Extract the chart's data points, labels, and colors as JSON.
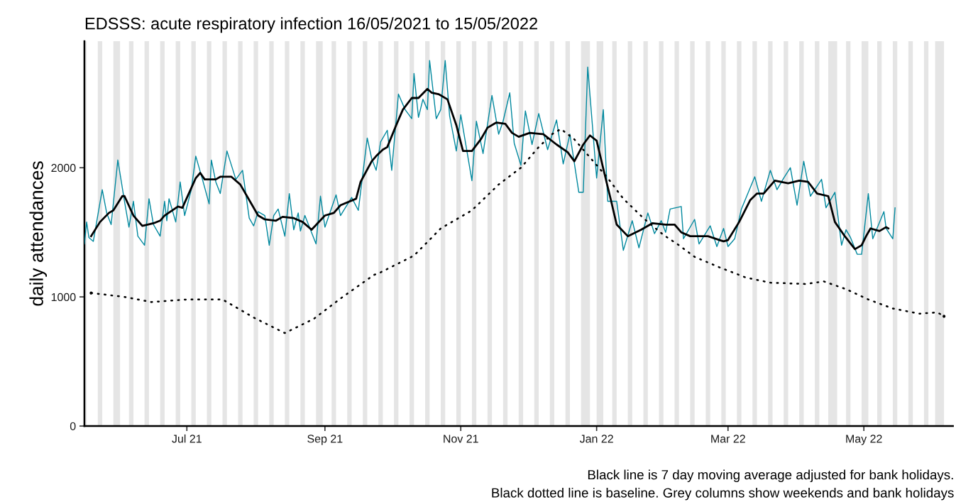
{
  "chart_data": {
    "type": "line",
    "title": "EDSSS: acute respiratory infection 16/05/2021 to 15/05/2022",
    "ylabel": "daily attendances",
    "annotations": [
      "Black line is 7 day moving average adjusted for bank holidays.",
      "Black dotted line is baseline. Grey columns show weekends and bank holidays"
    ],
    "xlim": [
      "2021-05-16",
      "2022-06-10"
    ],
    "xticks": [
      {
        "value": "2021-07-01",
        "label": "Jul 21"
      },
      {
        "value": "2021-09-01",
        "label": "Sep 21"
      },
      {
        "value": "2021-11-01",
        "label": "Nov 21"
      },
      {
        "value": "2022-01-01",
        "label": "Jan 22"
      },
      {
        "value": "2022-03-01",
        "label": "Mar 22"
      },
      {
        "value": "2022-05-01",
        "label": "May 22"
      }
    ],
    "ylim": [
      0,
      2980
    ],
    "yticks": [
      0,
      1000,
      2000
    ],
    "grid": false,
    "series": [
      {
        "color": "#00889e",
        "line_style": "solid",
        "x": [
          "2021-05-16",
          "2021-05-17",
          "2021-05-18",
          "2021-05-20",
          "2021-05-24",
          "2021-05-26",
          "2021-05-28",
          "2021-05-31",
          "2021-06-03",
          "2021-06-05",
          "2021-06-07",
          "2021-06-09",
          "2021-06-12",
          "2021-06-14",
          "2021-06-16",
          "2021-06-19",
          "2021-06-21",
          "2021-06-22",
          "2021-06-23",
          "2021-06-26",
          "2021-06-28",
          "2021-06-30",
          "2021-07-03",
          "2021-07-05",
          "2021-07-08",
          "2021-07-11",
          "2021-07-12",
          "2021-07-14",
          "2021-07-16",
          "2021-07-19",
          "2021-07-23",
          "2021-07-26",
          "2021-07-29",
          "2021-07-31",
          "2021-08-02",
          "2021-08-05",
          "2021-08-07",
          "2021-08-09",
          "2021-08-11",
          "2021-08-14",
          "2021-08-16",
          "2021-08-18",
          "2021-08-20",
          "2021-08-21",
          "2021-08-23",
          "2021-08-28",
          "2021-08-30",
          "2021-09-01",
          "2021-09-06",
          "2021-09-08",
          "2021-09-13",
          "2021-09-16",
          "2021-09-20",
          "2021-09-22",
          "2021-09-24",
          "2021-09-26",
          "2021-09-29",
          "2021-10-01",
          "2021-10-04",
          "2021-10-07",
          "2021-10-10",
          "2021-10-11",
          "2021-10-13",
          "2021-10-15",
          "2021-10-17",
          "2021-10-18",
          "2021-10-21",
          "2021-10-23",
          "2021-10-25",
          "2021-10-27",
          "2021-10-30",
          "2021-11-01",
          "2021-11-06",
          "2021-11-08",
          "2021-11-11",
          "2021-11-15",
          "2021-11-18",
          "2021-11-20",
          "2021-11-23",
          "2021-11-25",
          "2021-11-28",
          "2021-11-30",
          "2021-12-03",
          "2021-12-06",
          "2021-12-10",
          "2021-12-14",
          "2021-12-17",
          "2021-12-20",
          "2021-12-24",
          "2021-12-26",
          "2021-12-28",
          "2022-01-01",
          "2022-01-04",
          "2022-01-06",
          "2022-01-10",
          "2022-01-13",
          "2022-01-17",
          "2022-01-20",
          "2022-01-24",
          "2022-01-27",
          "2022-01-30",
          "2022-02-01",
          "2022-02-03",
          "2022-02-08",
          "2022-02-09",
          "2022-02-14",
          "2022-02-16",
          "2022-02-21",
          "2022-02-24",
          "2022-02-27",
          "2022-03-01",
          "2022-03-04",
          "2022-03-07",
          "2022-03-13",
          "2022-03-16",
          "2022-03-20",
          "2022-03-23",
          "2022-03-26",
          "2022-03-29",
          "2022-04-01",
          "2022-04-04",
          "2022-04-07",
          "2022-04-12",
          "2022-04-14",
          "2022-04-18",
          "2022-04-21",
          "2022-04-23",
          "2022-04-25",
          "2022-04-28",
          "2022-04-30",
          "2022-05-03",
          "2022-05-05",
          "2022-05-10",
          "2022-05-11",
          "2022-05-14",
          "2022-05-15"
        ],
        "values": [
          1410,
          1580,
          1460,
          1430,
          1830,
          1650,
          1560,
          2060,
          1740,
          1540,
          1740,
          1470,
          1400,
          1760,
          1560,
          1470,
          1740,
          1590,
          1760,
          1580,
          1890,
          1630,
          1830,
          2090,
          1910,
          1720,
          2060,
          1890,
          1800,
          2130,
          1910,
          1980,
          1610,
          1550,
          1660,
          1630,
          1400,
          1630,
          1680,
          1470,
          1800,
          1520,
          1650,
          1510,
          1630,
          1410,
          1780,
          1540,
          1790,
          1630,
          1770,
          1670,
          2230,
          2070,
          1980,
          2200,
          2290,
          1980,
          2570,
          2450,
          2380,
          2730,
          2390,
          2530,
          2450,
          2830,
          2380,
          2450,
          2830,
          2400,
          2130,
          2410,
          1900,
          2360,
          2110,
          2560,
          2260,
          2360,
          2580,
          2190,
          2020,
          2440,
          2180,
          2420,
          2140,
          2370,
          2030,
          2260,
          1810,
          1810,
          2780,
          1920,
          2450,
          1740,
          1740,
          1360,
          1590,
          1380,
          1650,
          1490,
          1590,
          1500,
          1680,
          1700,
          1450,
          1600,
          1410,
          1550,
          1390,
          1530,
          1390,
          1450,
          1680,
          1930,
          1740,
          1980,
          1830,
          1920,
          2000,
          1710,
          2050,
          1780,
          1910,
          1690,
          1810,
          1400,
          1520,
          1460,
          1330,
          1330,
          1800,
          1450,
          1660,
          1530,
          1450,
          1690
        ]
      },
      {
        "color": "#000000",
        "line_style": "solid",
        "x": [
          "2021-05-19",
          "2021-05-23",
          "2021-05-27",
          "2021-05-29",
          "2021-06-02",
          "2021-06-03",
          "2021-06-07",
          "2021-06-11",
          "2021-06-16",
          "2021-06-19",
          "2021-06-21",
          "2021-06-27",
          "2021-06-29",
          "2021-07-05",
          "2021-07-07",
          "2021-07-09",
          "2021-07-14",
          "2021-07-16",
          "2021-07-21",
          "2021-07-25",
          "2021-07-28",
          "2021-08-02",
          "2021-08-05",
          "2021-08-10",
          "2021-08-13",
          "2021-08-18",
          "2021-08-22",
          "2021-08-26",
          "2021-09-01",
          "2021-09-05",
          "2021-09-08",
          "2021-09-15",
          "2021-09-17",
          "2021-09-22",
          "2021-09-24",
          "2021-09-27",
          "2021-09-29",
          "2021-10-03",
          "2021-10-06",
          "2021-10-10",
          "2021-10-13",
          "2021-10-17",
          "2021-10-19",
          "2021-10-22",
          "2021-10-26",
          "2021-10-30",
          "2021-11-02",
          "2021-11-06",
          "2021-11-10",
          "2021-11-13",
          "2021-11-17",
          "2021-11-21",
          "2021-11-24",
          "2021-11-27",
          "2021-12-02",
          "2021-12-08",
          "2021-12-14",
          "2021-12-19",
          "2021-12-22",
          "2021-12-26",
          "2021-12-29",
          "2022-01-01",
          "2022-01-05",
          "2022-01-07",
          "2022-01-10",
          "2022-01-15",
          "2022-01-21",
          "2022-01-26",
          "2022-02-01",
          "2022-02-05",
          "2022-02-08",
          "2022-02-12",
          "2022-02-20",
          "2022-02-27",
          "2022-03-01",
          "2022-03-06",
          "2022-03-11",
          "2022-03-14",
          "2022-03-17",
          "2022-03-22",
          "2022-03-28",
          "2022-04-02",
          "2022-04-06",
          "2022-04-10",
          "2022-04-15",
          "2022-04-18",
          "2022-04-22",
          "2022-04-27",
          "2022-04-30",
          "2022-05-02",
          "2022-05-04",
          "2022-05-08",
          "2022-05-11",
          "2022-05-12"
        ],
        "values": [
          1470,
          1580,
          1650,
          1670,
          1780,
          1780,
          1630,
          1550,
          1570,
          1590,
          1630,
          1700,
          1690,
          1920,
          1960,
          1910,
          1910,
          1930,
          1930,
          1870,
          1780,
          1630,
          1600,
          1590,
          1620,
          1610,
          1580,
          1520,
          1630,
          1650,
          1710,
          1760,
          1890,
          2050,
          2090,
          2140,
          2160,
          2330,
          2450,
          2540,
          2540,
          2610,
          2580,
          2570,
          2530,
          2330,
          2130,
          2130,
          2220,
          2310,
          2350,
          2340,
          2270,
          2240,
          2270,
          2260,
          2180,
          2120,
          2050,
          2180,
          2250,
          2210,
          1920,
          1780,
          1560,
          1470,
          1520,
          1570,
          1560,
          1560,
          1500,
          1470,
          1470,
          1430,
          1440,
          1580,
          1750,
          1800,
          1800,
          1900,
          1880,
          1900,
          1890,
          1800,
          1780,
          1580,
          1480,
          1370,
          1400,
          1470,
          1530,
          1510,
          1540,
          1530
        ]
      },
      {
        "color": "#000000",
        "line_style": "dotted",
        "x": [
          "2021-05-19",
          "2021-06-03",
          "2021-06-15",
          "2021-07-01",
          "2021-07-17",
          "2021-07-31",
          "2021-08-14",
          "2021-08-27",
          "2021-09-09",
          "2021-09-23",
          "2021-09-26",
          "2021-10-11",
          "2021-10-23",
          "2021-11-06",
          "2021-11-18",
          "2021-11-28",
          "2021-12-06",
          "2021-12-12",
          "2021-12-16",
          "2021-12-22",
          "2021-12-29",
          "2022-01-06",
          "2022-01-13",
          "2022-01-22",
          "2022-01-31",
          "2022-02-07",
          "2022-02-14",
          "2022-02-25",
          "2022-03-09",
          "2022-03-20",
          "2022-04-05",
          "2022-04-13",
          "2022-04-23",
          "2022-05-03",
          "2022-05-14",
          "2022-05-26",
          "2022-06-03",
          "2022-06-06"
        ],
        "values": [
          1030,
          1000,
          960,
          980,
          980,
          840,
          720,
          830,
          1000,
          1170,
          1190,
          1320,
          1530,
          1670,
          1870,
          2000,
          2160,
          2260,
          2300,
          2220,
          2080,
          1920,
          1760,
          1610,
          1480,
          1400,
          1310,
          1230,
          1150,
          1110,
          1100,
          1120,
          1060,
          980,
          910,
          870,
          880,
          850
        ]
      }
    ],
    "bands": [
      {
        "axis": "x",
        "from": "2021-05-16",
        "to": "2021-05-17",
        "color": "#e5e5e5"
      },
      {
        "axis": "x",
        "from": "2021-05-22",
        "to": "2021-05-24",
        "color": "#e5e5e5"
      },
      {
        "axis": "x",
        "from": "2021-05-29",
        "to": "2021-06-01",
        "color": "#e5e5e5"
      },
      {
        "axis": "x",
        "from": "2021-06-05",
        "to": "2021-06-07",
        "color": "#e5e5e5"
      },
      {
        "axis": "x",
        "from": "2021-06-12",
        "to": "2021-06-14",
        "color": "#e5e5e5"
      },
      {
        "axis": "x",
        "from": "2021-06-19",
        "to": "2021-06-21",
        "color": "#e5e5e5"
      },
      {
        "axis": "x",
        "from": "2021-06-26",
        "to": "2021-06-28",
        "color": "#e5e5e5"
      },
      {
        "axis": "x",
        "from": "2021-07-03",
        "to": "2021-07-05",
        "color": "#e5e5e5"
      },
      {
        "axis": "x",
        "from": "2021-07-10",
        "to": "2021-07-12",
        "color": "#e5e5e5"
      },
      {
        "axis": "x",
        "from": "2021-07-17",
        "to": "2021-07-19",
        "color": "#e5e5e5"
      },
      {
        "axis": "x",
        "from": "2021-07-24",
        "to": "2021-07-26",
        "color": "#e5e5e5"
      },
      {
        "axis": "x",
        "from": "2021-07-31",
        "to": "2021-08-02",
        "color": "#e5e5e5"
      },
      {
        "axis": "x",
        "from": "2021-08-07",
        "to": "2021-08-09",
        "color": "#e5e5e5"
      },
      {
        "axis": "x",
        "from": "2021-08-14",
        "to": "2021-08-16",
        "color": "#e5e5e5"
      },
      {
        "axis": "x",
        "from": "2021-08-21",
        "to": "2021-08-23",
        "color": "#e5e5e5"
      },
      {
        "axis": "x",
        "from": "2021-08-28",
        "to": "2021-08-31",
        "color": "#e5e5e5"
      },
      {
        "axis": "x",
        "from": "2021-09-04",
        "to": "2021-09-06",
        "color": "#e5e5e5"
      },
      {
        "axis": "x",
        "from": "2021-09-11",
        "to": "2021-09-13",
        "color": "#e5e5e5"
      },
      {
        "axis": "x",
        "from": "2021-09-18",
        "to": "2021-09-20",
        "color": "#e5e5e5"
      },
      {
        "axis": "x",
        "from": "2021-09-25",
        "to": "2021-09-27",
        "color": "#e5e5e5"
      },
      {
        "axis": "x",
        "from": "2021-10-02",
        "to": "2021-10-04",
        "color": "#e5e5e5"
      },
      {
        "axis": "x",
        "from": "2021-10-09",
        "to": "2021-10-11",
        "color": "#e5e5e5"
      },
      {
        "axis": "x",
        "from": "2021-10-16",
        "to": "2021-10-18",
        "color": "#e5e5e5"
      },
      {
        "axis": "x",
        "from": "2021-10-23",
        "to": "2021-10-25",
        "color": "#e5e5e5"
      },
      {
        "axis": "x",
        "from": "2021-10-30",
        "to": "2021-11-01",
        "color": "#e5e5e5"
      },
      {
        "axis": "x",
        "from": "2021-11-06",
        "to": "2021-11-08",
        "color": "#e5e5e5"
      },
      {
        "axis": "x",
        "from": "2021-11-13",
        "to": "2021-11-15",
        "color": "#e5e5e5"
      },
      {
        "axis": "x",
        "from": "2021-11-20",
        "to": "2021-11-22",
        "color": "#e5e5e5"
      },
      {
        "axis": "x",
        "from": "2021-11-27",
        "to": "2021-11-29",
        "color": "#e5e5e5"
      },
      {
        "axis": "x",
        "from": "2021-12-04",
        "to": "2021-12-06",
        "color": "#e5e5e5"
      },
      {
        "axis": "x",
        "from": "2021-12-11",
        "to": "2021-12-13",
        "color": "#e5e5e5"
      },
      {
        "axis": "x",
        "from": "2021-12-18",
        "to": "2021-12-20",
        "color": "#e5e5e5"
      },
      {
        "axis": "x",
        "from": "2021-12-25",
        "to": "2021-12-29",
        "color": "#e5e5e5"
      },
      {
        "axis": "x",
        "from": "2022-01-01",
        "to": "2022-01-04",
        "color": "#e5e5e5"
      },
      {
        "axis": "x",
        "from": "2022-01-08",
        "to": "2022-01-10",
        "color": "#e5e5e5"
      },
      {
        "axis": "x",
        "from": "2022-01-15",
        "to": "2022-01-17",
        "color": "#e5e5e5"
      },
      {
        "axis": "x",
        "from": "2022-01-22",
        "to": "2022-01-24",
        "color": "#e5e5e5"
      },
      {
        "axis": "x",
        "from": "2022-01-29",
        "to": "2022-01-31",
        "color": "#e5e5e5"
      },
      {
        "axis": "x",
        "from": "2022-02-05",
        "to": "2022-02-07",
        "color": "#e5e5e5"
      },
      {
        "axis": "x",
        "from": "2022-02-12",
        "to": "2022-02-14",
        "color": "#e5e5e5"
      },
      {
        "axis": "x",
        "from": "2022-02-19",
        "to": "2022-02-21",
        "color": "#e5e5e5"
      },
      {
        "axis": "x",
        "from": "2022-02-26",
        "to": "2022-02-28",
        "color": "#e5e5e5"
      },
      {
        "axis": "x",
        "from": "2022-03-05",
        "to": "2022-03-07",
        "color": "#e5e5e5"
      },
      {
        "axis": "x",
        "from": "2022-03-12",
        "to": "2022-03-14",
        "color": "#e5e5e5"
      },
      {
        "axis": "x",
        "from": "2022-03-19",
        "to": "2022-03-21",
        "color": "#e5e5e5"
      },
      {
        "axis": "x",
        "from": "2022-03-26",
        "to": "2022-03-28",
        "color": "#e5e5e5"
      },
      {
        "axis": "x",
        "from": "2022-04-02",
        "to": "2022-04-04",
        "color": "#e5e5e5"
      },
      {
        "axis": "x",
        "from": "2022-04-09",
        "to": "2022-04-11",
        "color": "#e5e5e5"
      },
      {
        "axis": "x",
        "from": "2022-04-15",
        "to": "2022-04-19",
        "color": "#e5e5e5"
      },
      {
        "axis": "x",
        "from": "2022-04-23",
        "to": "2022-04-25",
        "color": "#e5e5e5"
      },
      {
        "axis": "x",
        "from": "2022-04-30",
        "to": "2022-05-03",
        "color": "#e5e5e5"
      },
      {
        "axis": "x",
        "from": "2022-05-07",
        "to": "2022-05-09",
        "color": "#e5e5e5"
      },
      {
        "axis": "x",
        "from": "2022-05-14",
        "to": "2022-05-16",
        "color": "#e5e5e5"
      },
      {
        "axis": "x",
        "from": "2022-05-21",
        "to": "2022-05-23",
        "color": "#e5e5e5"
      },
      {
        "axis": "x",
        "from": "2022-05-28",
        "to": "2022-05-30",
        "color": "#e5e5e5"
      },
      {
        "axis": "x",
        "from": "2022-06-02",
        "to": "2022-06-06",
        "color": "#e5e5e5"
      }
    ]
  }
}
